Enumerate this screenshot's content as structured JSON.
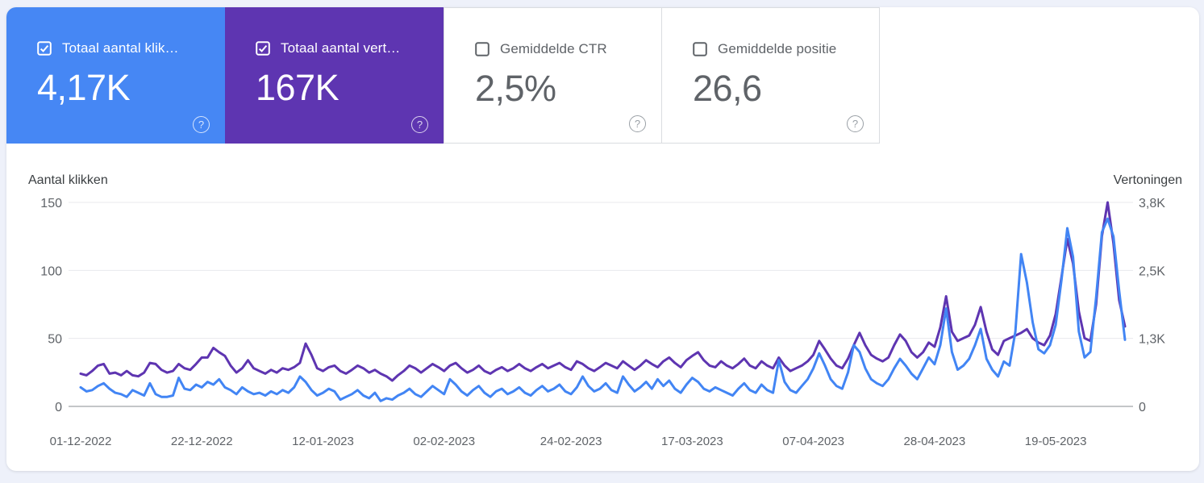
{
  "colors": {
    "page_bg": "#eef1fa",
    "panel_bg": "#ffffff",
    "clicks_blue": "#4285f4",
    "impressions_purple": "#5e35b1",
    "gridline": "#e8eaed",
    "axis_baseline": "#888d92",
    "text_gray": "#5f6368",
    "text_dark": "#3c4043",
    "card_border": "#dadce0"
  },
  "icons": {
    "help_glyph": "?",
    "checkbox_checked": "checkbox-checked-icon",
    "checkbox_unchecked": "checkbox-unchecked-icon"
  },
  "cards": [
    {
      "label": "Totaal aantal klik…",
      "value": "4,17K",
      "checked": true,
      "bg": "#4285f4"
    },
    {
      "label": "Totaal aantal vert…",
      "value": "167K",
      "checked": true,
      "bg": "#5e35b1"
    },
    {
      "label": "Gemiddelde CTR",
      "value": "2,5%",
      "checked": false,
      "bg": "#ffffff"
    },
    {
      "label": "Gemiddelde positie",
      "value": "26,6",
      "checked": false,
      "bg": "#ffffff"
    }
  ],
  "chart_data": {
    "type": "line",
    "left_axis_title": "Aantal klikken",
    "right_axis_title": "Vertoningen",
    "left_axis_range": [
      0,
      150
    ],
    "right_axis_range": [
      0,
      3800
    ],
    "grid": true,
    "y_gridlines": [
      {
        "frac": 0,
        "left_label": "0",
        "right_label": "0"
      },
      {
        "frac": 0.3333,
        "left_label": "50",
        "right_label": "1,3K"
      },
      {
        "frac": 0.6667,
        "left_label": "100",
        "right_label": "2,5K"
      },
      {
        "frac": 1,
        "left_label": "150",
        "right_label": "3,8K"
      }
    ],
    "x_ticks": [
      {
        "day": 0,
        "label": "01-12-2022"
      },
      {
        "day": 21,
        "label": "22-12-2022"
      },
      {
        "day": 42,
        "label": "12-01-2023"
      },
      {
        "day": 63,
        "label": "02-02-2023"
      },
      {
        "day": 85,
        "label": "24-02-2023"
      },
      {
        "day": 106,
        "label": "17-03-2023"
      },
      {
        "day": 127,
        "label": "07-04-2023"
      },
      {
        "day": 148,
        "label": "28-04-2023"
      },
      {
        "day": 169,
        "label": "19-05-2023"
      }
    ],
    "days_total": 181,
    "series": [
      {
        "name": "Totaal aantal vertoningen",
        "axis": "right",
        "color": "#5e35b1",
        "max": 3800,
        "values": [
          610,
          580,
          660,
          760,
          790,
          610,
          630,
          580,
          660,
          580,
          560,
          630,
          810,
          790,
          680,
          630,
          660,
          790,
          710,
          680,
          790,
          910,
          910,
          1090,
          1010,
          940,
          760,
          630,
          710,
          860,
          710,
          660,
          610,
          680,
          630,
          710,
          680,
          730,
          810,
          1170,
          960,
          710,
          660,
          730,
          760,
          660,
          610,
          680,
          760,
          710,
          630,
          680,
          610,
          560,
          480,
          580,
          660,
          760,
          710,
          630,
          710,
          790,
          730,
          660,
          760,
          810,
          710,
          630,
          680,
          760,
          660,
          610,
          680,
          730,
          660,
          710,
          790,
          710,
          660,
          730,
          790,
          710,
          760,
          810,
          730,
          680,
          840,
          790,
          710,
          660,
          730,
          810,
          760,
          710,
          840,
          760,
          680,
          760,
          860,
          790,
          730,
          840,
          910,
          810,
          730,
          860,
          940,
          1010,
          860,
          760,
          730,
          840,
          760,
          710,
          790,
          890,
          760,
          710,
          840,
          760,
          710,
          910,
          760,
          660,
          710,
          760,
          840,
          960,
          1220,
          1060,
          890,
          760,
          710,
          890,
          1140,
          1370,
          1140,
          960,
          890,
          840,
          910,
          1140,
          1340,
          1220,
          1010,
          910,
          1010,
          1190,
          1110,
          1470,
          2050,
          1390,
          1220,
          1270,
          1320,
          1520,
          1850,
          1390,
          1060,
          960,
          1220,
          1270,
          1320,
          1370,
          1440,
          1270,
          1190,
          1140,
          1320,
          1720,
          2410,
          3120,
          2660,
          1770,
          1270,
          1220,
          1900,
          3170,
          3800,
          3040,
          1980,
          1490
        ]
      },
      {
        "name": "Totaal aantal klikken",
        "axis": "left",
        "color": "#4285f4",
        "max": 150,
        "values": [
          14,
          11,
          12,
          15,
          17,
          13,
          10,
          9,
          7,
          12,
          10,
          8,
          17,
          9,
          7,
          7,
          8,
          21,
          13,
          12,
          16,
          14,
          18,
          16,
          20,
          14,
          12,
          9,
          14,
          11,
          9,
          10,
          8,
          11,
          9,
          12,
          10,
          14,
          22,
          18,
          12,
          8,
          10,
          13,
          11,
          5,
          7,
          9,
          12,
          8,
          6,
          10,
          4,
          6,
          5,
          8,
          10,
          13,
          9,
          7,
          11,
          15,
          12,
          9,
          20,
          16,
          11,
          8,
          12,
          15,
          10,
          7,
          11,
          13,
          9,
          11,
          14,
          10,
          8,
          12,
          15,
          11,
          13,
          16,
          11,
          9,
          14,
          22,
          15,
          11,
          13,
          17,
          12,
          10,
          22,
          16,
          11,
          14,
          18,
          13,
          20,
          15,
          19,
          13,
          10,
          16,
          21,
          18,
          13,
          11,
          14,
          12,
          10,
          8,
          13,
          17,
          12,
          10,
          16,
          12,
          10,
          34,
          18,
          12,
          10,
          15,
          20,
          28,
          39,
          30,
          20,
          15,
          13,
          25,
          45,
          40,
          28,
          20,
          17,
          15,
          20,
          28,
          35,
          30,
          24,
          20,
          28,
          36,
          31,
          45,
          72,
          40,
          27,
          30,
          35,
          45,
          57,
          35,
          27,
          22,
          33,
          30,
          55,
          112,
          91,
          62,
          42,
          39,
          45,
          60,
          93,
          131,
          110,
          55,
          36,
          40,
          80,
          128,
          138,
          125,
          85,
          49
        ]
      }
    ]
  }
}
